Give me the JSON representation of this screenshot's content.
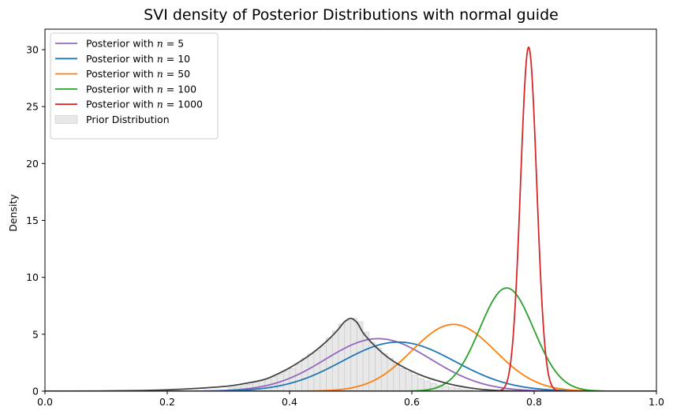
{
  "chart_data": {
    "type": "line",
    "title": "SVI density of Posterior Distributions with normal guide",
    "xlabel": "",
    "ylabel": "Density",
    "xlim": [
      0.0,
      1.0
    ],
    "ylim": [
      0,
      31.8
    ],
    "xticks": [
      0.0,
      0.2,
      0.4,
      0.6,
      0.8,
      1.0
    ],
    "xtick_labels": [
      "0.0",
      "0.2",
      "0.4",
      "0.6",
      "0.8",
      "1.0"
    ],
    "yticks": [
      0,
      5,
      10,
      15,
      20,
      25,
      30
    ],
    "ytick_labels": [
      "0",
      "5",
      "10",
      "15",
      "20",
      "25",
      "30"
    ],
    "grid": false,
    "legend_position": "top-left",
    "series": [
      {
        "name": "Posterior with $n = 5$",
        "label_prefix": "Posterior with ",
        "label_var": "n",
        "label_rest": " = 5",
        "color": "#9467bd",
        "kind": "normal",
        "mean": 0.545,
        "sd": 0.0865
      },
      {
        "name": "Posterior with $n = 10$",
        "label_prefix": "Posterior with ",
        "label_var": "n",
        "label_rest": " = 10",
        "color": "#1f77b4",
        "kind": "normal",
        "mean": 0.578,
        "sd": 0.0925
      },
      {
        "name": "Posterior with $n = 50$",
        "label_prefix": "Posterior with ",
        "label_var": "n",
        "label_rest": " = 50",
        "color": "#ff7f0e",
        "kind": "normal",
        "mean": 0.668,
        "sd": 0.068
      },
      {
        "name": "Posterior with $n = 100$",
        "label_prefix": "Posterior with ",
        "label_var": "n",
        "label_rest": " = 100",
        "color": "#2ca02c",
        "kind": "normal",
        "mean": 0.755,
        "sd": 0.044
      },
      {
        "name": "Posterior with $n = 1000$",
        "label_prefix": "Posterior with ",
        "label_var": "n",
        "label_rest": " = 1000",
        "color": "#d62728",
        "kind": "normal",
        "mean": 0.791,
        "sd": 0.0132
      }
    ],
    "prior": {
      "name": "Prior Distribution",
      "hist_color": "#e8e8e8",
      "hist_edge": "#cccccc",
      "kde_color": "#444444",
      "kde": {
        "x": [
          0.0,
          0.1,
          0.15,
          0.2,
          0.25,
          0.3,
          0.33,
          0.36,
          0.38,
          0.4,
          0.42,
          0.44,
          0.46,
          0.48,
          0.49,
          0.5,
          0.51,
          0.52,
          0.54,
          0.56,
          0.58,
          0.6,
          0.62,
          0.64,
          0.66,
          0.68,
          0.7,
          0.72,
          0.75,
          0.8,
          1.0
        ],
        "y": [
          0.0,
          0.02,
          0.05,
          0.12,
          0.25,
          0.45,
          0.7,
          1.05,
          1.5,
          2.05,
          2.7,
          3.45,
          4.35,
          5.45,
          6.1,
          6.4,
          6.05,
          5.15,
          3.95,
          3.0,
          2.3,
          1.75,
          1.3,
          0.95,
          0.65,
          0.42,
          0.25,
          0.13,
          0.04,
          0.0,
          0.0
        ]
      },
      "bins": {
        "x": [
          0.3,
          0.31,
          0.32,
          0.33,
          0.34,
          0.35,
          0.36,
          0.37,
          0.38,
          0.39,
          0.4,
          0.41,
          0.42,
          0.43,
          0.44,
          0.45,
          0.46,
          0.47,
          0.48,
          0.49,
          0.5,
          0.51,
          0.52,
          0.53,
          0.54,
          0.55,
          0.56,
          0.57,
          0.58,
          0.59,
          0.6,
          0.61,
          0.62,
          0.63,
          0.64,
          0.65,
          0.66,
          0.67,
          0.68,
          0.69
        ],
        "y": [
          0.3,
          0.4,
          0.5,
          0.6,
          0.8,
          0.9,
          1.1,
          1.3,
          1.5,
          1.8,
          2.0,
          2.4,
          2.9,
          3.3,
          3.6,
          4.0,
          4.7,
          5.3,
          5.9,
          6.2,
          6.4,
          6.1,
          5.2,
          4.3,
          3.8,
          3.3,
          2.9,
          2.4,
          2.0,
          1.7,
          1.4,
          1.1,
          0.9,
          0.7,
          0.55,
          0.45,
          0.35,
          0.25,
          0.15,
          0.1
        ],
        "width": 0.01
      }
    }
  }
}
